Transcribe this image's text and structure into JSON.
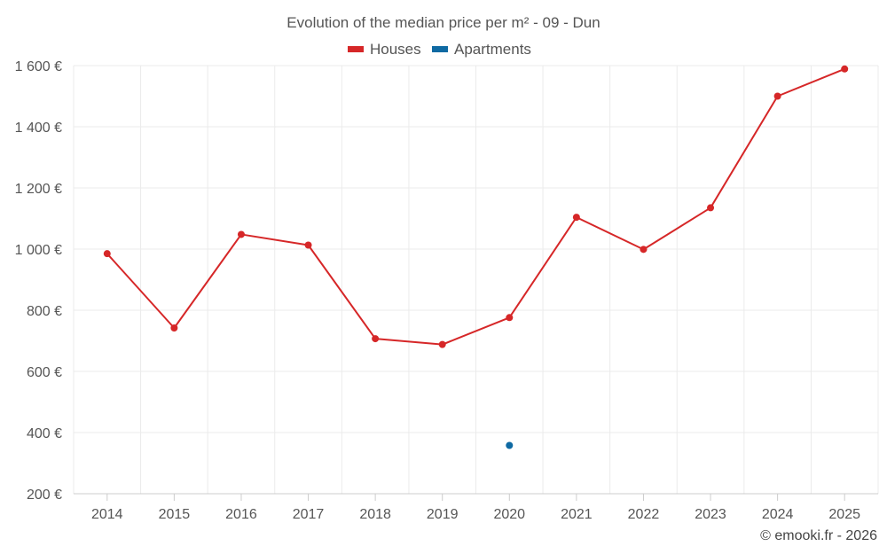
{
  "chart_data": {
    "type": "line",
    "title": "Evolution of the median price per m² - 09 - Dun",
    "categories": [
      "2014",
      "2015",
      "2016",
      "2017",
      "2018",
      "2019",
      "2020",
      "2021",
      "2022",
      "2023",
      "2024",
      "2025"
    ],
    "series": [
      {
        "name": "Houses",
        "color": "#d62728",
        "values": [
          985,
          742,
          1048,
          1013,
          707,
          688,
          776,
          1104,
          999,
          1135,
          1500,
          1589
        ]
      },
      {
        "name": "Apartments",
        "color": "#0f6aa3",
        "values": [
          null,
          null,
          null,
          null,
          null,
          null,
          358,
          null,
          null,
          null,
          null,
          null
        ]
      }
    ],
    "yticks": [
      "1 600 €",
      "1 400 €",
      "1 200 €",
      "1 000 €",
      "800 €",
      "600 €",
      "400 €",
      "200 €"
    ],
    "ytick_values": [
      1600,
      1400,
      1200,
      1000,
      800,
      600,
      400,
      200
    ],
    "ylim": [
      200,
      1600
    ],
    "xlabel": "",
    "ylabel": "",
    "grid": true,
    "legend_position": "top-center"
  },
  "credit": "© emooki.fr - 2026"
}
